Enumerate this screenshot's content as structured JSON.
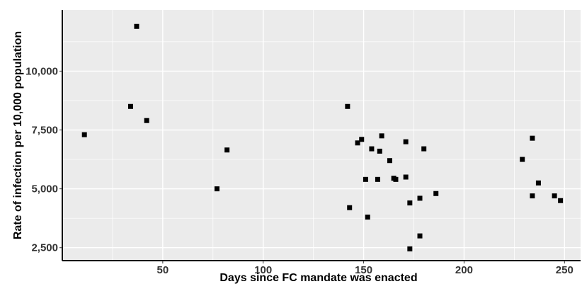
{
  "chart_data": {
    "type": "scatter",
    "title": "",
    "xlabel": "Days since FC mandate was enacted",
    "ylabel": "Rate of infection per 10,000 population",
    "xlim": [
      0,
      258
    ],
    "ylim": [
      1950,
      12600
    ],
    "x_ticks": [
      {
        "value": 50,
        "label": "50"
      },
      {
        "value": 100,
        "label": "100"
      },
      {
        "value": 150,
        "label": "150"
      },
      {
        "value": 200,
        "label": "200"
      },
      {
        "value": 250,
        "label": "250"
      }
    ],
    "y_ticks": [
      {
        "value": 2500,
        "label": "2,500"
      },
      {
        "value": 5000,
        "label": "5,000"
      },
      {
        "value": 7500,
        "label": "7,500"
      },
      {
        "value": 10000,
        "label": "10,000"
      }
    ],
    "grid": true,
    "panel_color": "#ebebeb",
    "grid_color": "#ffffff",
    "point_color": "#000000",
    "points": [
      {
        "x": 11,
        "y": 7300
      },
      {
        "x": 34,
        "y": 8500
      },
      {
        "x": 37,
        "y": 11900
      },
      {
        "x": 42,
        "y": 7900
      },
      {
        "x": 77,
        "y": 5000
      },
      {
        "x": 82,
        "y": 6650
      },
      {
        "x": 142,
        "y": 8500
      },
      {
        "x": 143,
        "y": 4200
      },
      {
        "x": 147,
        "y": 6950
      },
      {
        "x": 149,
        "y": 7100
      },
      {
        "x": 151,
        "y": 5400
      },
      {
        "x": 152,
        "y": 3800
      },
      {
        "x": 154,
        "y": 6700
      },
      {
        "x": 157,
        "y": 5400
      },
      {
        "x": 158,
        "y": 6600
      },
      {
        "x": 159,
        "y": 7250
      },
      {
        "x": 163,
        "y": 6200
      },
      {
        "x": 165,
        "y": 5450
      },
      {
        "x": 166,
        "y": 5400
      },
      {
        "x": 171,
        "y": 7000
      },
      {
        "x": 171,
        "y": 5500
      },
      {
        "x": 173,
        "y": 4400
      },
      {
        "x": 173,
        "y": 2450
      },
      {
        "x": 178,
        "y": 4600
      },
      {
        "x": 178,
        "y": 3000
      },
      {
        "x": 180,
        "y": 6700
      },
      {
        "x": 186,
        "y": 4800
      },
      {
        "x": 229,
        "y": 6250
      },
      {
        "x": 234,
        "y": 7150
      },
      {
        "x": 234,
        "y": 4700
      },
      {
        "x": 237,
        "y": 5250
      },
      {
        "x": 245,
        "y": 4700
      },
      {
        "x": 248,
        "y": 4500
      }
    ]
  }
}
